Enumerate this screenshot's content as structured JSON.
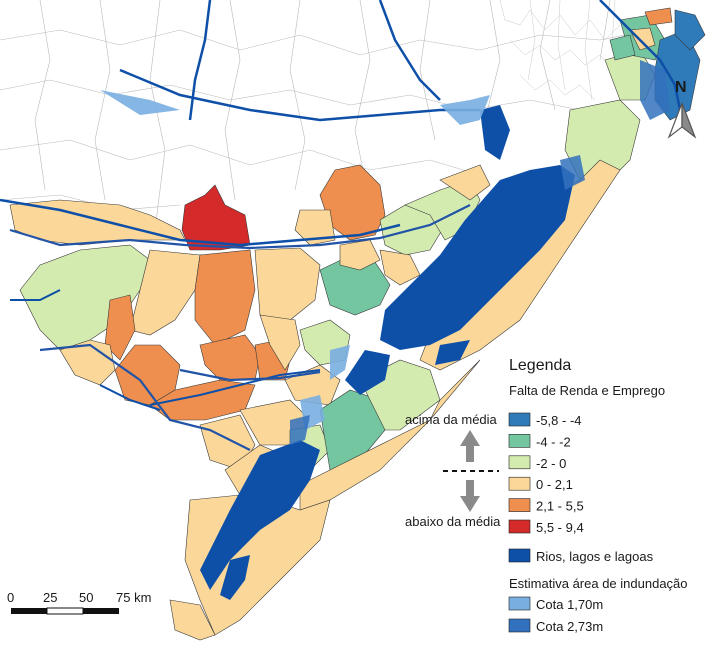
{
  "legend": {
    "title": "Legenda",
    "section_income": "Falta de Renda e Emprego",
    "above_label": "acima da média",
    "below_label": "abaixo da média",
    "classes": [
      {
        "label": "-5,8 - -4",
        "color": "#2f7ab8"
      },
      {
        "label": "-4 - -2",
        "color": "#73c6a0"
      },
      {
        "label": "-2 - 0",
        "color": "#d4ebb0"
      },
      {
        "label": "0 - 2,1",
        "color": "#fbd899"
      },
      {
        "label": "2,1 - 5,5",
        "color": "#ee8f4f"
      },
      {
        "label": "5,5 - 9,4",
        "color": "#d42a2a"
      }
    ],
    "water_label": "Rios, lagos e lagoas",
    "water_color": "#0e4fa8",
    "flood_section": "Estimativa área de indundação",
    "flood_classes": [
      {
        "label": "Cota 1,70m",
        "color": "#79aee0"
      },
      {
        "label": "Cota 2,73m",
        "color": "#3271bd"
      }
    ]
  },
  "north": {
    "label": "N"
  },
  "scalebar": {
    "ticks": [
      "0",
      "25",
      "50",
      "75 km"
    ]
  }
}
